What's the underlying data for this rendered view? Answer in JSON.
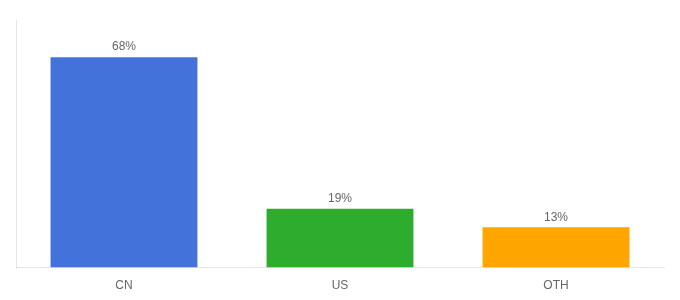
{
  "chart_data": {
    "type": "bar",
    "categories": [
      "CN",
      "US",
      "OTH"
    ],
    "values": [
      68,
      19,
      13
    ],
    "value_labels": [
      "68%",
      "19%",
      "13%"
    ],
    "colors": [
      "#4472db",
      "#2eac2e",
      "#ffa500"
    ],
    "ylim": [
      0,
      80
    ],
    "data_labels": true,
    "tick_labels": "x",
    "grid": false
  }
}
